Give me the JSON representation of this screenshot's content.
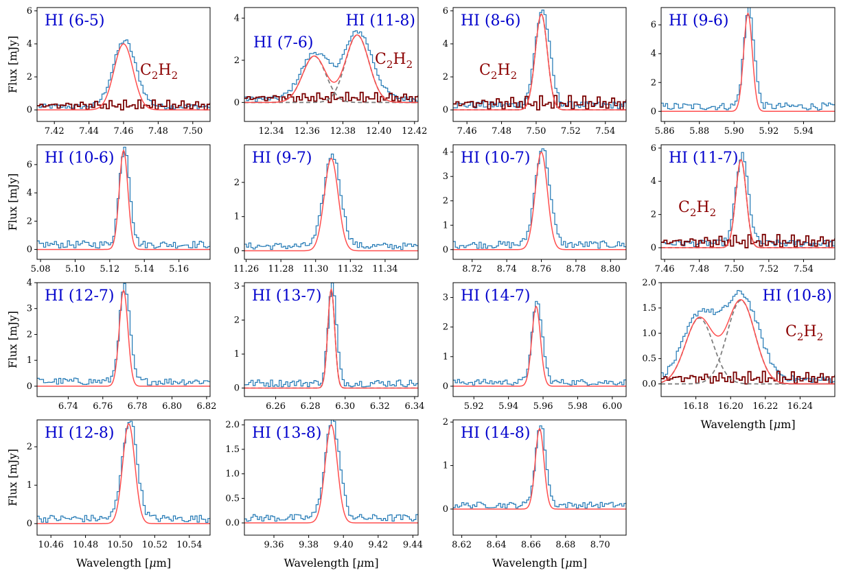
{
  "figure": {
    "ylabel": "Flux [mJy]",
    "xlabel": "Wavelength [",
    "xlabel_unit_greek": "μ",
    "xlabel_unit_rest": "m]",
    "colors": {
      "data": "#1f77b4",
      "model": "#ff4d4d",
      "component": "#7f7f7f",
      "c2h2": "#7a0000",
      "line_label": "#0000cc",
      "mol_label": "#8b0000"
    },
    "c2h2_symbol": "C",
    "c2h2_sub1": "2",
    "c2h2_mid": "H",
    "c2h2_sub2": "2"
  },
  "chart_data": [
    {
      "type": "line",
      "title": "HI (6-5)",
      "label_pos": "top-left",
      "center": 7.46,
      "width": 0.0055,
      "amp": 4.0,
      "xlim": [
        7.41,
        7.51
      ],
      "ylim": [
        -0.7,
        6.2
      ],
      "xticks": [
        "7.42",
        "7.44",
        "7.46",
        "7.48",
        "7.50"
      ],
      "yticks": [
        "0",
        "2",
        "4",
        "6"
      ],
      "c2h2": true,
      "c2h2_label_pos": "right",
      "ylabel": true,
      "xlabel": false
    },
    {
      "type": "line",
      "title": "HI (11-8)",
      "label2": "HI (7-6)",
      "label_pos": "top-right",
      "center": 12.388,
      "width": 0.0065,
      "amp": 3.2,
      "center2": 12.364,
      "amp2": 2.2,
      "mid_bump": 2.3,
      "xlim": [
        12.325,
        12.422
      ],
      "ylim": [
        -0.9,
        4.5
      ],
      "xticks": [
        "12.34",
        "12.36",
        "12.38",
        "12.40",
        "12.42"
      ],
      "yticks": [
        "0",
        "2",
        "4"
      ],
      "c2h2": true,
      "c2h2_label_pos": "right",
      "components": true,
      "ylabel": false,
      "xlabel": false
    },
    {
      "type": "line",
      "title": "HI (8-6)",
      "label_pos": "top-left",
      "center": 7.503,
      "width": 0.0035,
      "amp": 5.8,
      "xlim": [
        7.452,
        7.552
      ],
      "ylim": [
        -0.7,
        6.2
      ],
      "xticks": [
        "7.46",
        "7.48",
        "7.50",
        "7.52",
        "7.54"
      ],
      "yticks": [
        "0",
        "2",
        "4",
        "6"
      ],
      "c2h2": true,
      "c2h2_label_pos": "left",
      "components": true,
      "ylabel": false,
      "xlabel": false
    },
    {
      "type": "line",
      "title": "HI (9-6)",
      "label_pos": "top-left",
      "center": 5.908,
      "width": 0.0025,
      "amp": 6.8,
      "xlim": [
        5.858,
        5.958
      ],
      "ylim": [
        -0.7,
        7.2
      ],
      "xticks": [
        "5.86",
        "5.88",
        "5.90",
        "5.92",
        "5.94"
      ],
      "yticks": [
        "0",
        "2",
        "4",
        "6"
      ],
      "c2h2": false,
      "ylabel": false,
      "xlabel": false
    },
    {
      "type": "line",
      "title": "HI (10-6)",
      "label_pos": "top-left",
      "center": 5.128,
      "width": 0.0025,
      "amp": 7.0,
      "xlim": [
        5.078,
        5.178
      ],
      "ylim": [
        -0.7,
        7.4
      ],
      "xticks": [
        "5.08",
        "5.10",
        "5.12",
        "5.14",
        "5.16"
      ],
      "yticks": [
        "0",
        "2",
        "4",
        "6"
      ],
      "c2h2": false,
      "ylabel": true,
      "xlabel": false
    },
    {
      "type": "line",
      "title": "HI (9-7)",
      "label_pos": "top-left",
      "center": 11.309,
      "width": 0.004,
      "amp": 2.7,
      "xlim": [
        11.259,
        11.359
      ],
      "ylim": [
        -0.25,
        3.1
      ],
      "xticks": [
        "11.26",
        "11.28",
        "11.30",
        "11.32",
        "11.34"
      ],
      "yticks": [
        "0",
        "1",
        "2"
      ],
      "c2h2": false,
      "ylabel": false,
      "xlabel": false
    },
    {
      "type": "line",
      "title": "HI (10-7)",
      "label_pos": "top-left",
      "center": 8.76,
      "width": 0.0035,
      "amp": 4.0,
      "xlim": [
        8.709,
        8.809
      ],
      "ylim": [
        -0.4,
        4.3
      ],
      "xticks": [
        "8.72",
        "8.74",
        "8.76",
        "8.78",
        "8.80"
      ],
      "yticks": [
        "0",
        "1",
        "2",
        "3",
        "4"
      ],
      "c2h2": false,
      "ylabel": false,
      "xlabel": false
    },
    {
      "type": "line",
      "title": "HI (11-7)",
      "label_pos": "top-left",
      "center": 7.504,
      "width": 0.003,
      "amp": 5.3,
      "xlim": [
        7.458,
        7.558
      ],
      "ylim": [
        -0.7,
        6.2
      ],
      "xticks": [
        "7.46",
        "7.48",
        "7.50",
        "7.52",
        "7.54"
      ],
      "yticks": [
        "0",
        "2",
        "4",
        "6"
      ],
      "c2h2": true,
      "c2h2_label_pos": "left-low",
      "components": true,
      "ylabel": false,
      "xlabel": false
    },
    {
      "type": "line",
      "title": "HI (12-7)",
      "label_pos": "top-left",
      "center": 6.772,
      "width": 0.0025,
      "amp": 3.7,
      "xlim": [
        6.722,
        6.822
      ],
      "ylim": [
        -0.4,
        4.0
      ],
      "xticks": [
        "6.74",
        "6.76",
        "6.78",
        "6.80",
        "6.82"
      ],
      "yticks": [
        "0",
        "1",
        "2",
        "3",
        "4"
      ],
      "c2h2": false,
      "ylabel": true,
      "xlabel": false
    },
    {
      "type": "line",
      "title": "HI (13-7)",
      "label_pos": "top-left",
      "center": 6.292,
      "width": 0.002,
      "amp": 2.9,
      "xlim": [
        6.242,
        6.342
      ],
      "ylim": [
        -0.25,
        3.1
      ],
      "xticks": [
        "6.26",
        "6.28",
        "6.30",
        "6.32",
        "6.34"
      ],
      "yticks": [
        "0",
        "1",
        "2",
        "3"
      ],
      "c2h2": false,
      "components": true,
      "ylabel": false,
      "xlabel": false
    },
    {
      "type": "line",
      "title": "HI (14-7)",
      "label_pos": "top-left",
      "center": 5.956,
      "width": 0.0025,
      "amp": 2.7,
      "xlim": [
        5.908,
        6.008
      ],
      "ylim": [
        -0.35,
        3.5
      ],
      "xticks": [
        "5.92",
        "5.94",
        "5.96",
        "5.98",
        "6.00"
      ],
      "yticks": [
        "0",
        "1",
        "2",
        "3"
      ],
      "c2h2": false,
      "ylabel": false,
      "xlabel": false
    },
    {
      "type": "line",
      "title": "HI (10-8)",
      "label_pos": "top-right",
      "center": 16.206,
      "width": 0.008,
      "amp": 1.65,
      "center2": 16.182,
      "amp2": 1.3,
      "xlim": [
        16.16,
        16.26
      ],
      "ylim": [
        -0.25,
        2.0
      ],
      "xticks": [
        "16.18",
        "16.20",
        "16.22",
        "16.24"
      ],
      "yticks": [
        "0.0",
        "0.5",
        "1.0",
        "1.5",
        "2.0"
      ],
      "c2h2": true,
      "c2h2_label_pos": "right",
      "components": true,
      "ylabel": false,
      "xlabel": true
    },
    {
      "type": "line",
      "title": "HI (12-8)",
      "label_pos": "top-left",
      "center": 10.505,
      "width": 0.0035,
      "amp": 2.6,
      "xlim": [
        10.452,
        10.552
      ],
      "ylim": [
        -0.3,
        2.7
      ],
      "xticks": [
        "10.46",
        "10.48",
        "10.50",
        "10.52",
        "10.54"
      ],
      "yticks": [
        "0",
        "1",
        "2"
      ],
      "c2h2": false,
      "ylabel": true,
      "xlabel": true
    },
    {
      "type": "line",
      "title": "HI (13-8)",
      "label_pos": "top-left",
      "center": 9.393,
      "width": 0.0035,
      "amp": 2.0,
      "xlim": [
        9.343,
        9.443
      ],
      "ylim": [
        -0.25,
        2.1
      ],
      "xticks": [
        "9.36",
        "9.38",
        "9.40",
        "9.42",
        "9.44"
      ],
      "yticks": [
        "0.0",
        "0.5",
        "1.0",
        "1.5",
        "2.0"
      ],
      "c2h2": false,
      "ylabel": false,
      "xlabel": true
    },
    {
      "type": "line",
      "title": "HI (14-8)",
      "label_pos": "top-left",
      "center": 8.665,
      "width": 0.0025,
      "amp": 1.85,
      "xlim": [
        8.615,
        8.715
      ],
      "ylim": [
        -0.6,
        2.05
      ],
      "xticks": [
        "8.62",
        "8.64",
        "8.66",
        "8.68",
        "8.70"
      ],
      "yticks": [
        "0",
        "1",
        "2"
      ],
      "c2h2": false,
      "ylabel": false,
      "xlabel": true
    }
  ]
}
